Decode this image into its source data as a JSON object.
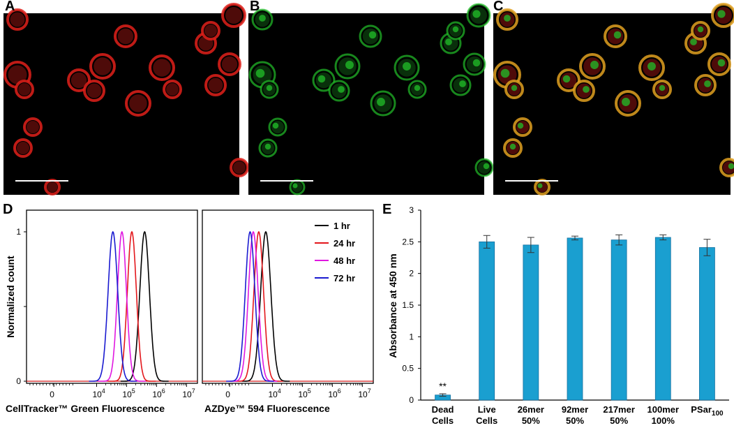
{
  "panels": {
    "A": "A",
    "B": "B",
    "C": "C",
    "D": "D",
    "E": "E"
  },
  "colors": {
    "red_channel": "#e0201a",
    "green_channel": "#22c02a",
    "bar": "#1a9fd0",
    "series_1hr": "#000000",
    "series_24hr": "#e3161b",
    "series_48hr": "#e017e0",
    "series_72hr": "#1a1ad0"
  },
  "chart_data": [
    {
      "type": "line",
      "panel": "D-left",
      "xlabel": "CellTracker™ Green Fluorescence",
      "ylabel": "Normalized count",
      "x_scale": "log",
      "xlim": [
        -2000,
        10000000
      ],
      "ylim": [
        0,
        1.05
      ],
      "x_tick_labels": [
        {
          "value": 0,
          "base": "0",
          "exp": ""
        },
        {
          "value": 10000,
          "base": "10",
          "exp": "4"
        },
        {
          "value": 100000,
          "base": "10",
          "exp": "5"
        },
        {
          "value": 1000000,
          "base": "10",
          "exp": "6"
        },
        {
          "value": 10000000,
          "base": "10",
          "exp": "7"
        }
      ],
      "y_tick_labels": [
        "0",
        "",
        "1"
      ],
      "y_ticks": [
        0,
        0.5,
        1
      ],
      "series": [
        {
          "name": "1 hr",
          "peak": 400000,
          "width_log": 0.16
        },
        {
          "name": "24 hr",
          "peak": 150000,
          "width_log": 0.15
        },
        {
          "name": "48 hr",
          "peak": 70000,
          "width_log": 0.15
        },
        {
          "name": "72 hr",
          "peak": 35000,
          "width_log": 0.16
        }
      ]
    },
    {
      "type": "line",
      "panel": "D-right",
      "xlabel": "AZDye™ 594 Fluorescence",
      "x_scale": "log",
      "xlim": [
        -2000,
        10000000
      ],
      "ylim": [
        0,
        1.05
      ],
      "x_tick_labels": [
        {
          "value": 0,
          "base": "0",
          "exp": ""
        },
        {
          "value": 10000,
          "base": "10",
          "exp": "4"
        },
        {
          "value": 100000,
          "base": "10",
          "exp": "5"
        },
        {
          "value": 1000000,
          "base": "10",
          "exp": "6"
        },
        {
          "value": 10000000,
          "base": "10",
          "exp": "7"
        }
      ],
      "series": [
        {
          "name": "1 hr",
          "peak": 6000,
          "width_log": 0.17
        },
        {
          "name": "24 hr",
          "peak": 3500,
          "width_log": 0.16
        },
        {
          "name": "48 hr",
          "peak": 2300,
          "width_log": 0.16
        },
        {
          "name": "72 hr",
          "peak": 1800,
          "width_log": 0.16
        }
      ],
      "legend": [
        "1 hr",
        "24 hr",
        "48 hr",
        "72 hr"
      ],
      "legend_position": "top-right"
    },
    {
      "type": "bar",
      "panel": "E",
      "ylabel": "Absorbance at 450 nm",
      "ylim": [
        0,
        3
      ],
      "y_ticks": [
        0,
        0.5,
        1,
        1.5,
        2,
        2.5,
        3
      ],
      "y_tick_labels": [
        "0",
        "0.5",
        "1",
        "1.5",
        "2",
        "2.5",
        "3"
      ],
      "categories": [
        {
          "line1": "Dead",
          "line2": "Cells",
          "sub": ""
        },
        {
          "line1": "Live",
          "line2": "Cells",
          "sub": ""
        },
        {
          "line1": "26mer",
          "line2": "50%",
          "sub": ""
        },
        {
          "line1": "92mer",
          "line2": "50%",
          "sub": ""
        },
        {
          "line1": "217mer",
          "line2": "50%",
          "sub": ""
        },
        {
          "line1": "100mer",
          "line2": "100%",
          "sub": ""
        },
        {
          "line1": "PSar",
          "line2": "",
          "sub": "100"
        }
      ],
      "values": [
        0.08,
        2.5,
        2.45,
        2.56,
        2.53,
        2.57,
        2.41
      ],
      "errors": [
        0.02,
        0.1,
        0.12,
        0.03,
        0.08,
        0.04,
        0.13
      ],
      "annotations": [
        {
          "category_index": 0,
          "text": "**"
        }
      ]
    }
  ]
}
